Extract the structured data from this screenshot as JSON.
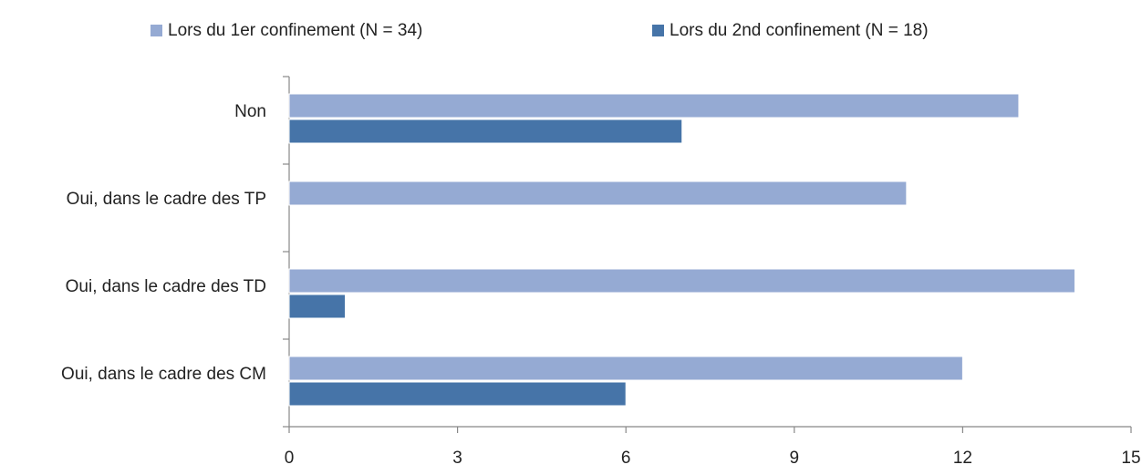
{
  "chart_data": {
    "type": "hbar",
    "categories": [
      "Non",
      "Oui, dans le cadre des TP",
      "Oui, dans le cadre des TD",
      "Oui, dans le cadre des CM"
    ],
    "series": [
      {
        "name": "Lors du 1er confinement (N = 34)",
        "color": "#95aad3",
        "values": [
          13,
          11,
          14,
          12
        ]
      },
      {
        "name": "Lors du 2nd confinement (N = 18)",
        "color": "#4674a8",
        "values": [
          7,
          0,
          1,
          6
        ]
      }
    ],
    "xlim": [
      0,
      15
    ],
    "xticks": [
      0,
      3,
      6,
      9,
      12,
      15
    ],
    "grid": false,
    "legend": "top"
  }
}
